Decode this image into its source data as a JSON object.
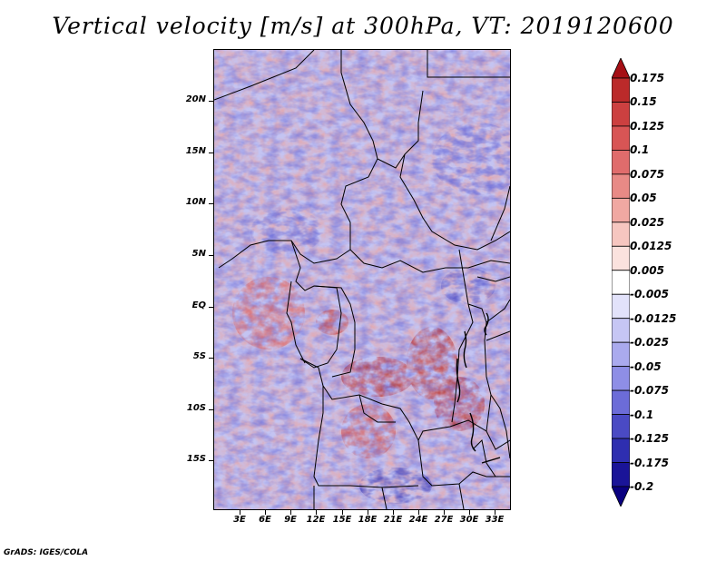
{
  "title": "Vertical velocity [m/s] at 300hPa, VT: 2019120600",
  "credit": "GrADS: IGES/COLA",
  "map": {
    "lat_ticks": [
      "20N",
      "15N",
      "10N",
      "5N",
      "EQ",
      "5S",
      "10S",
      "15S"
    ],
    "lon_ticks": [
      "3E",
      "6E",
      "9E",
      "12E",
      "15E",
      "18E",
      "21E",
      "24E",
      "27E",
      "30E",
      "33E"
    ],
    "lat_range": [
      -20,
      25
    ],
    "lon_range": [
      0,
      35
    ],
    "field_note_colors": {
      "strong_up": "#a00f14",
      "weak_up": "#f6b3a8",
      "neutral": "#ffffff",
      "weak_down": "#b7b8f0",
      "strong_down": "#2b22b0"
    }
  },
  "colorbar": {
    "labels": [
      "0.175",
      "0.15",
      "0.125",
      "0.1",
      "0.075",
      "0.05",
      "0.025",
      "0.0125",
      "0.005",
      "-0.005",
      "-0.0125",
      "-0.025",
      "-0.05",
      "-0.075",
      "-0.1",
      "-0.125",
      "-0.175",
      "-0.2"
    ],
    "colors": [
      "#a50f15",
      "#bb2a2a",
      "#cc4040",
      "#d85555",
      "#e06c6c",
      "#e88a86",
      "#f0a8a2",
      "#f6c6c0",
      "#fbe2de",
      "#ffffff",
      "#e2e2fa",
      "#c6c6f4",
      "#aaaaee",
      "#8e8ee6",
      "#6c6cd8",
      "#4a4ac4",
      "#2e2eb0",
      "#1a1498",
      "#0a0080"
    ]
  }
}
